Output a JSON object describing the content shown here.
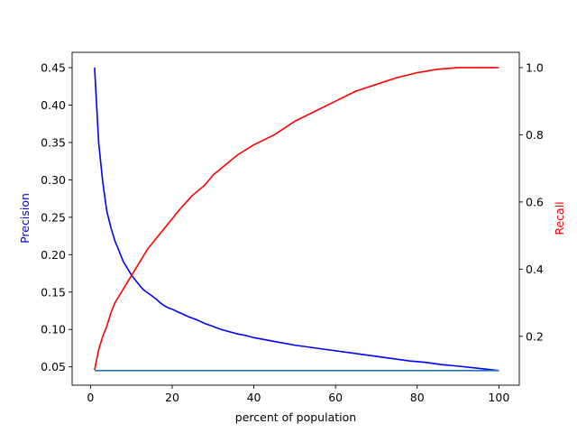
{
  "chart_data": {
    "type": "line",
    "xlabel": "percent of population",
    "ylabel_left": "Precision",
    "ylabel_right": "Recall",
    "xlim": [
      -4.5,
      105
    ],
    "ylim_left": [
      0.0255,
      0.4705
    ],
    "ylim_right": [
      0.0545,
      1.0455
    ],
    "x_ticks": [
      "0",
      "20",
      "40",
      "60",
      "80",
      "100"
    ],
    "x_tick_values": [
      0,
      20,
      40,
      60,
      80,
      100
    ],
    "y_left_ticks": [
      "0.05",
      "0.10",
      "0.15",
      "0.20",
      "0.25",
      "0.30",
      "0.35",
      "0.40",
      "0.45"
    ],
    "y_left_tick_values": [
      0.05,
      0.1,
      0.15,
      0.2,
      0.25,
      0.3,
      0.35,
      0.4,
      0.45
    ],
    "y_right_ticks": [
      "0.2",
      "0.4",
      "0.6",
      "0.8",
      "1.0"
    ],
    "y_right_tick_values": [
      0.2,
      0.4,
      0.6,
      0.8,
      1.0
    ],
    "colors": {
      "precision": "#0000ff",
      "recall": "#ff0000",
      "baseline": "#1f77b4",
      "left_label": "#0000ff",
      "right_label": "#ff0000"
    },
    "series": [
      {
        "axis": "left",
        "x": [
          1,
          2,
          3,
          4,
          5,
          6,
          7,
          8,
          9,
          10,
          11,
          12,
          13,
          14,
          15,
          16,
          17,
          18,
          19,
          20,
          22,
          24,
          26,
          28,
          30,
          32,
          34,
          36,
          38,
          40,
          43,
          46,
          50,
          54,
          58,
          62,
          66,
          70,
          74,
          78,
          82,
          86,
          90,
          95,
          100
        ],
        "y": [
          0.45,
          0.35,
          0.297,
          0.258,
          0.236,
          0.218,
          0.205,
          0.191,
          0.182,
          0.173,
          0.166,
          0.159,
          0.153,
          0.149,
          0.145,
          0.141,
          0.136,
          0.132,
          0.129,
          0.127,
          0.122,
          0.117,
          0.113,
          0.108,
          0.104,
          0.1,
          0.097,
          0.094,
          0.092,
          0.089,
          0.086,
          0.083,
          0.079,
          0.076,
          0.073,
          0.07,
          0.067,
          0.064,
          0.061,
          0.058,
          0.056,
          0.053,
          0.051,
          0.048,
          0.045
        ]
      },
      {
        "axis": "left",
        "x": [
          1,
          100
        ],
        "y": [
          0.045,
          0.045
        ]
      },
      {
        "axis": "right",
        "x": [
          1,
          2,
          3,
          4,
          5,
          6,
          7,
          8,
          10,
          12,
          14,
          16,
          18,
          20,
          22,
          25,
          28,
          30,
          33,
          36,
          40,
          45,
          50,
          55,
          60,
          65,
          70,
          75,
          80,
          85,
          90,
          95,
          100
        ],
        "y": [
          0.1,
          0.16,
          0.2,
          0.23,
          0.27,
          0.3,
          0.32,
          0.34,
          0.38,
          0.42,
          0.46,
          0.49,
          0.52,
          0.55,
          0.58,
          0.62,
          0.65,
          0.68,
          0.71,
          0.74,
          0.77,
          0.8,
          0.84,
          0.87,
          0.9,
          0.93,
          0.95,
          0.97,
          0.985,
          0.995,
          1.0,
          1.0,
          1.0
        ]
      }
    ]
  }
}
